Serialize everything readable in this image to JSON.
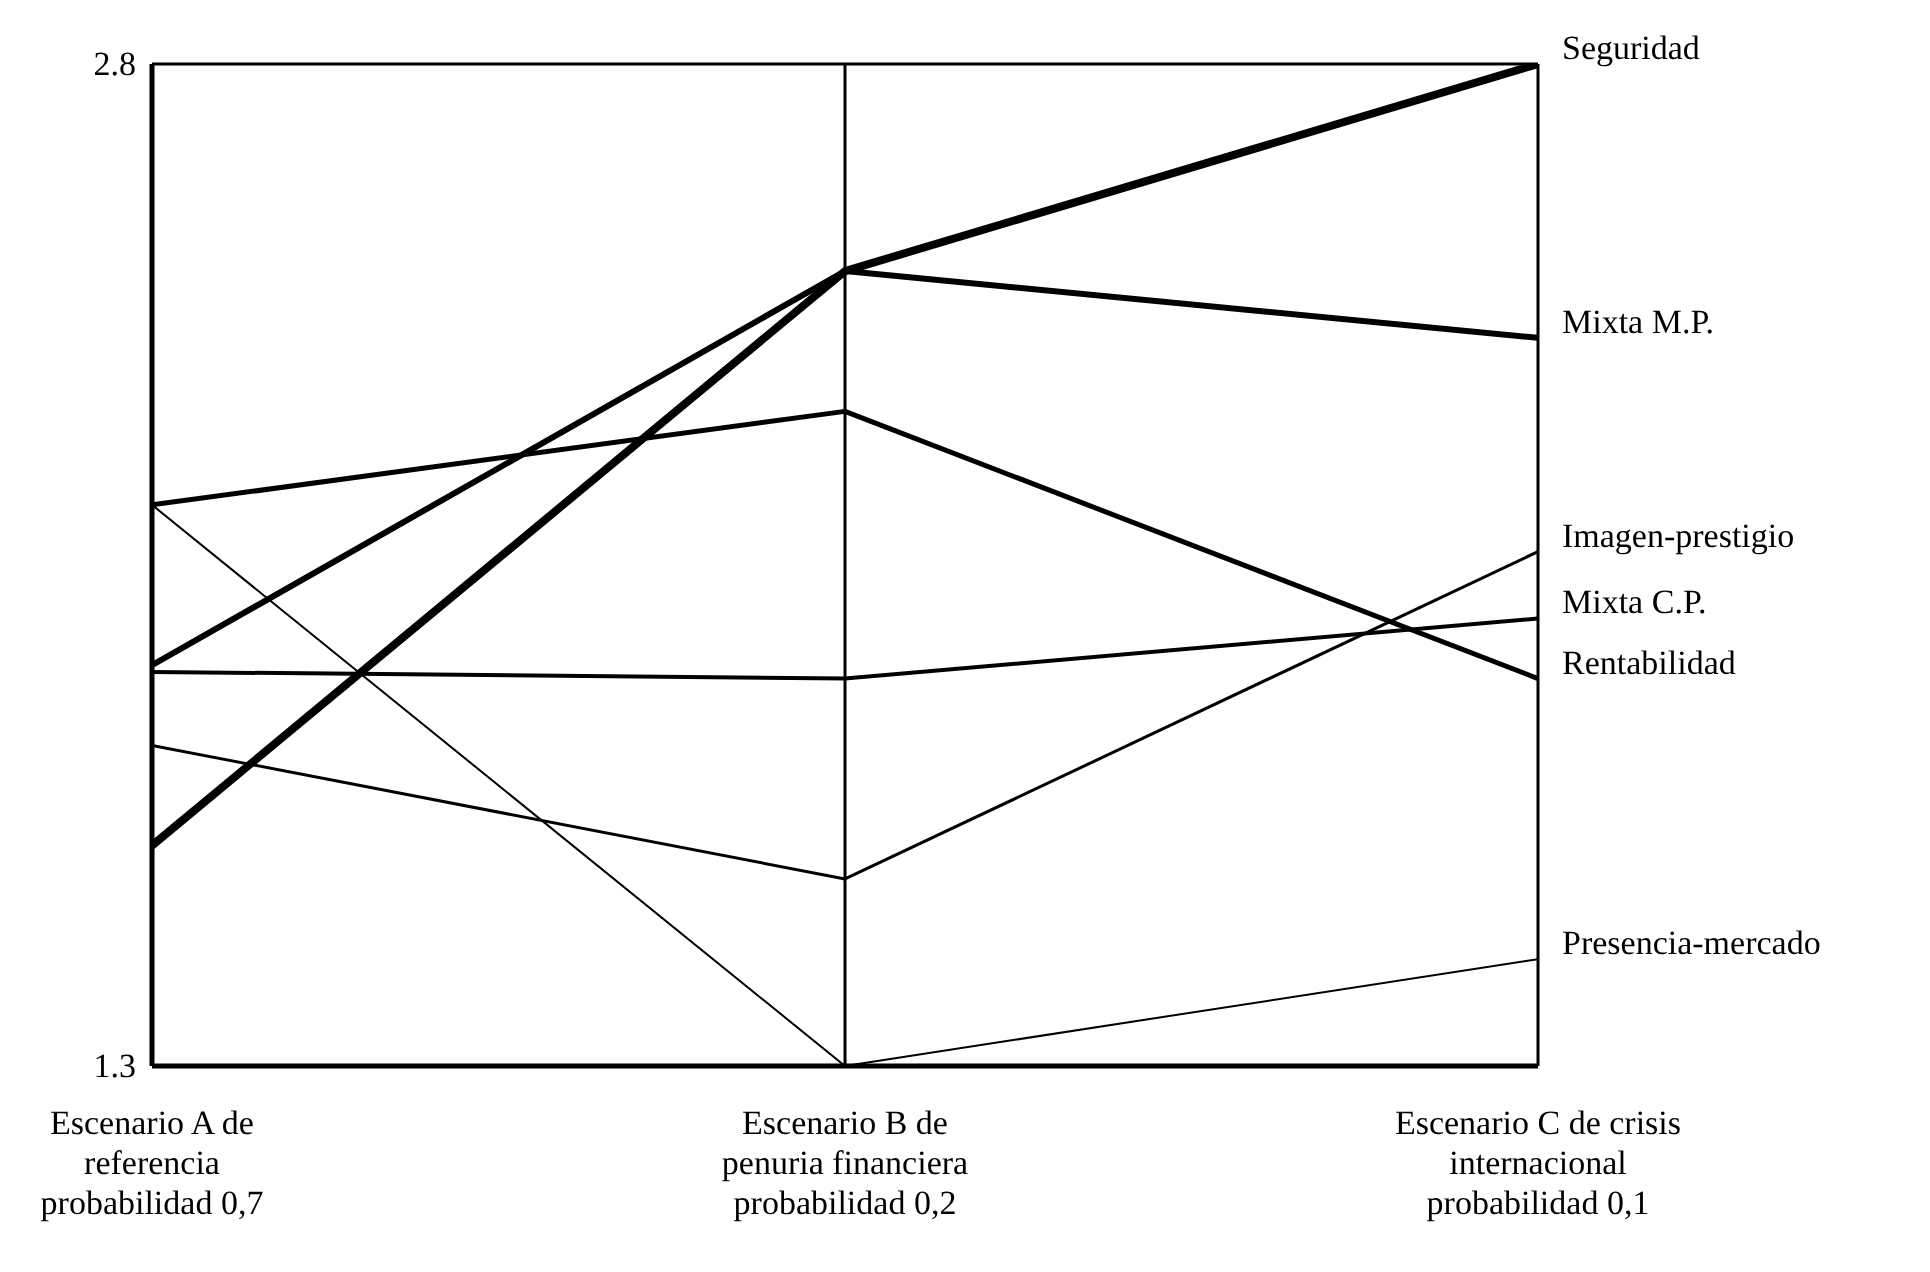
{
  "chart_data": {
    "type": "line",
    "categories": [
      "Escenario A de referencia probabilidad 0,7",
      "Escenario B de penuria financiera probabilidad 0,2",
      "Escenario C de crisis internacional probabilidad 0,1"
    ],
    "series": [
      {
        "name": "Seguridad",
        "color": "#000000",
        "values": [
          1.63,
          2.49,
          2.8
        ]
      },
      {
        "name": "Mixta M.P.",
        "color": "#000000",
        "values": [
          1.9,
          2.49,
          2.39
        ]
      },
      {
        "name": "Imagen-prestigio",
        "color": "#000000",
        "values": [
          1.78,
          1.58,
          2.07
        ]
      },
      {
        "name": "Mixta C.P.",
        "color": "#000000",
        "values": [
          1.89,
          1.88,
          1.97
        ]
      },
      {
        "name": "Rentabilidad",
        "color": "#000000",
        "values": [
          2.14,
          2.28,
          1.88
        ]
      },
      {
        "name": "Presencia-mercado",
        "color": "#000000",
        "values": [
          2.14,
          1.3,
          1.46
        ]
      }
    ],
    "ylim": [
      1.3,
      2.8
    ],
    "yticks": [
      1.3,
      2.8
    ],
    "grid": true,
    "marker": "none",
    "line_style": "solid"
  }
}
